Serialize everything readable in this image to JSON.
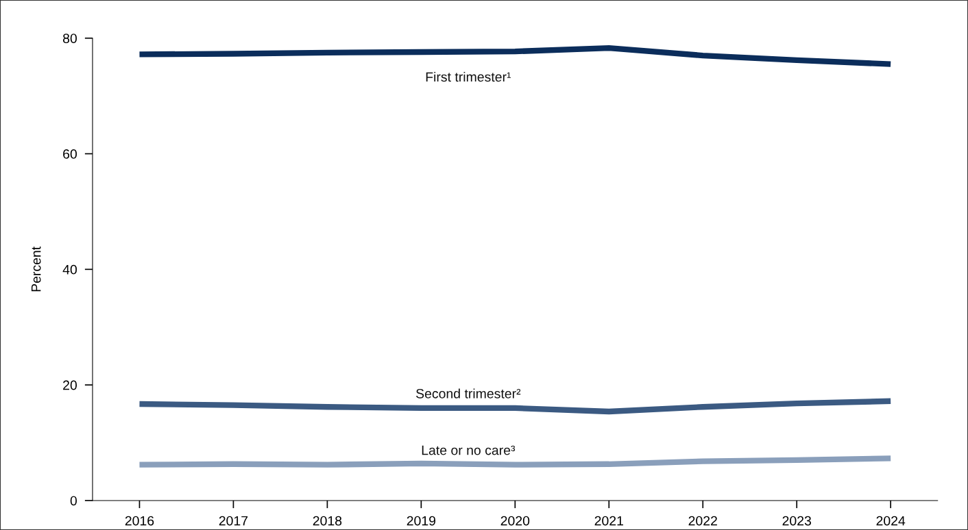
{
  "chart_data": {
    "type": "line",
    "ylabel": "Percent",
    "categories": [
      "2016",
      "2017",
      "2018",
      "2019",
      "2020",
      "2021",
      "2022",
      "2023",
      "2024"
    ],
    "series": [
      {
        "name": "First trimester¹",
        "color": "#0b2d5b",
        "values": [
          77.2,
          77.3,
          77.5,
          77.6,
          77.7,
          78.3,
          77.0,
          76.2,
          75.5
        ]
      },
      {
        "name": "Second trimester²",
        "color": "#3b5a82",
        "values": [
          16.7,
          16.5,
          16.2,
          16.0,
          16.0,
          15.4,
          16.2,
          16.8,
          17.2
        ]
      },
      {
        "name": "Late or no care³",
        "color": "#8a9fbb",
        "values": [
          6.2,
          6.3,
          6.2,
          6.4,
          6.2,
          6.3,
          6.8,
          7.0,
          7.3
        ]
      }
    ],
    "ylim": [
      0,
      80
    ],
    "yticks": [
      0,
      20,
      40,
      60,
      80
    ],
    "grid": false,
    "legend": false,
    "marker": "none",
    "line_style": "solid"
  }
}
